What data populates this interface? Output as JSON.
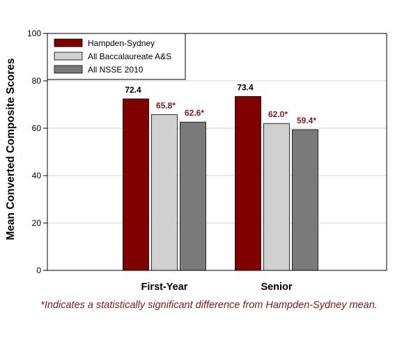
{
  "chart_data": {
    "type": "bar",
    "ylabel": "Mean Converted Composite Scores",
    "ylim": [
      0,
      100
    ],
    "yticks": [
      0,
      20,
      40,
      60,
      80,
      100
    ],
    "categories": [
      "First-Year",
      "Senior"
    ],
    "grid": true,
    "legend_position": "top-left",
    "series": [
      {
        "name": "Hampden-Sydney",
        "color": "#800000",
        "values": [
          72.4,
          73.4
        ],
        "labels": [
          "72.4",
          "73.4"
        ],
        "label_color": "#000000"
      },
      {
        "name": "All Baccalaureate A&S",
        "color": "#d0d0d0",
        "values": [
          65.8,
          62.0
        ],
        "labels": [
          "65.8*",
          "62.0*"
        ],
        "label_color": "#7a1a1a"
      },
      {
        "name": "All NSSE 2010",
        "color": "#7a7a7a",
        "values": [
          62.6,
          59.4
        ],
        "labels": [
          "62.6*",
          "59.4*"
        ],
        "label_color": "#7a1a1a"
      }
    ]
  },
  "footnote": {
    "text": "*Indicates a statistically significant difference from Hampden-Sydney mean.",
    "color": "#7a1a1a"
  }
}
